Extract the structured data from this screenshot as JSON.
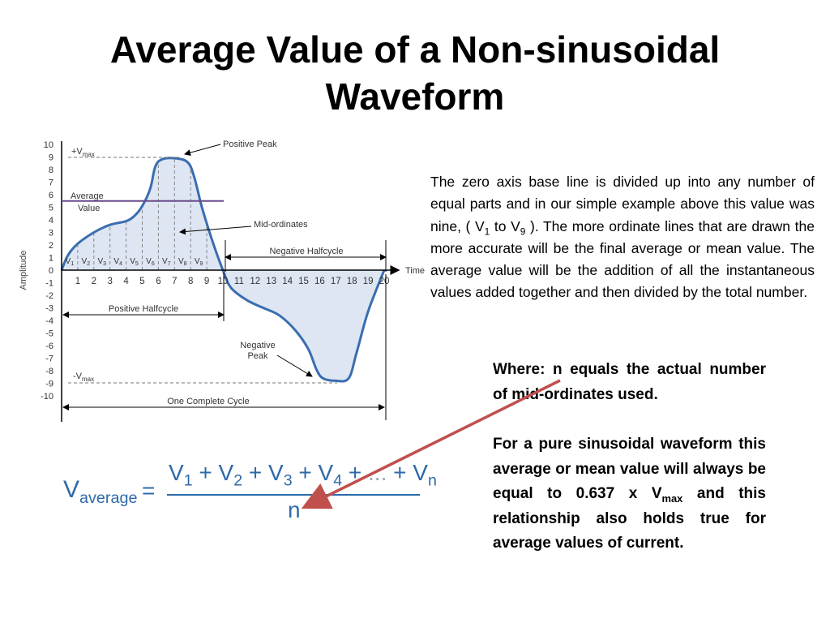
{
  "title": {
    "line1": "Average Value of a Non-sinusoidal",
    "line2": "Waveform"
  },
  "paragraph": {
    "part1": "The zero axis base line is divided up into any number of equal parts and in our simple example above this value was nine, ( V",
    "sub1": "1",
    "part2": " to V",
    "sub2": "9",
    "part3": " ). The more ordinate lines that are drawn the more accurate will be the final average or mean value. The average value will be the addition of all the instantaneous values added together and then divided by the total number."
  },
  "where_text": "Where: n equals the actual number of mid-ordinates used.",
  "sinusoidal_note": {
    "part1": "For a pure sinusoidal waveform this average or mean value will always be equal to 0.637 x V",
    "sub": "max",
    "part2": " and this relationship also holds true for average values of current."
  },
  "formula": {
    "lhs": "V",
    "lhs_sub": "average",
    "equals": "=",
    "numerator": "V1 + V2 + V3 + V4 + ... + Vn",
    "denominator": "n"
  },
  "diagram": {
    "y_axis_label": "Amplitude",
    "x_axis_label": "Time",
    "y_ticks": [
      "10",
      "9",
      "8",
      "7",
      "6",
      "5",
      "4",
      "3",
      "2",
      "1",
      "0",
      "-1",
      "-2",
      "-3",
      "-4",
      "-5",
      "-6",
      "-7",
      "-8",
      "-9",
      "-10"
    ],
    "x_ticks": [
      "1",
      "2",
      "3",
      "4",
      "5",
      "6",
      "7",
      "8",
      "9",
      "10",
      "11",
      "12",
      "13",
      "14",
      "15",
      "16",
      "17",
      "18",
      "19",
      "20"
    ],
    "mid_ordinate_labels": [
      "V1",
      "V2",
      "V3",
      "V4",
      "V5",
      "V6",
      "V7",
      "V8",
      "V9"
    ],
    "vmax_pos": "+V",
    "vmax_neg": "-V",
    "vmax_sub": "max",
    "positive_peak": "Positive Peak",
    "average_line1": "Average",
    "average_line2": "Value",
    "mid_ordinates": "Mid-ordinates",
    "negative_halfcycle": "Negative Halfcycle",
    "positive_halfcycle": "Positive Halfcycle",
    "negative_peak_line1": "Negative",
    "negative_peak_line2": "Peak",
    "complete_cycle": "One Complete Cycle",
    "average_level": 5.5,
    "waveform_color": "#3a6db0",
    "fill_color": "#dde6f2",
    "average_line_color": "#6a4b8c"
  },
  "arrow_color": "#c0504d"
}
